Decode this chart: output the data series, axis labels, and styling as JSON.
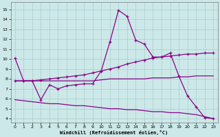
{
  "xlabel": "Windchill (Refroidissement éolien,°C)",
  "bg_color": "#cce8e8",
  "grid_color": "#aacccc",
  "line_color": "#880088",
  "x_ticks": [
    0,
    1,
    2,
    3,
    4,
    5,
    6,
    7,
    8,
    9,
    10,
    11,
    12,
    13,
    14,
    15,
    16,
    17,
    18,
    19,
    20,
    21,
    22,
    23
  ],
  "y_ticks": [
    4,
    5,
    6,
    7,
    8,
    9,
    10,
    11,
    12,
    13,
    14,
    15
  ],
  "ylim": [
    3.6,
    15.7
  ],
  "xlim": [
    -0.5,
    23.5
  ],
  "series": {
    "peak_line": [
      10.1,
      7.8,
      7.8,
      5.9,
      7.4,
      7.0,
      7.3,
      7.4,
      7.5,
      7.5,
      8.8,
      11.7,
      14.9,
      14.3,
      11.9,
      11.5,
      10.2,
      10.2,
      10.6,
      8.3,
      6.3,
      5.2,
      4.1,
      4.0
    ],
    "rising_line": [
      7.8,
      7.8,
      7.8,
      7.9,
      8.0,
      8.1,
      8.2,
      8.3,
      8.4,
      8.6,
      8.8,
      9.0,
      9.2,
      9.5,
      9.7,
      9.9,
      10.1,
      10.2,
      10.3,
      10.4,
      10.5,
      10.5,
      10.6,
      10.6
    ],
    "flat_line": [
      7.8,
      7.8,
      7.8,
      7.8,
      7.8,
      7.8,
      7.8,
      7.8,
      7.8,
      7.8,
      7.9,
      8.0,
      8.0,
      8.0,
      8.0,
      8.0,
      8.1,
      8.1,
      8.1,
      8.2,
      8.2,
      8.3,
      8.3,
      8.3
    ],
    "decline_line": [
      5.9,
      5.8,
      5.7,
      5.6,
      5.5,
      5.5,
      5.4,
      5.3,
      5.3,
      5.2,
      5.1,
      5.0,
      5.0,
      4.9,
      4.9,
      4.8,
      4.7,
      4.7,
      4.6,
      4.6,
      4.5,
      4.4,
      4.2,
      4.0
    ]
  }
}
